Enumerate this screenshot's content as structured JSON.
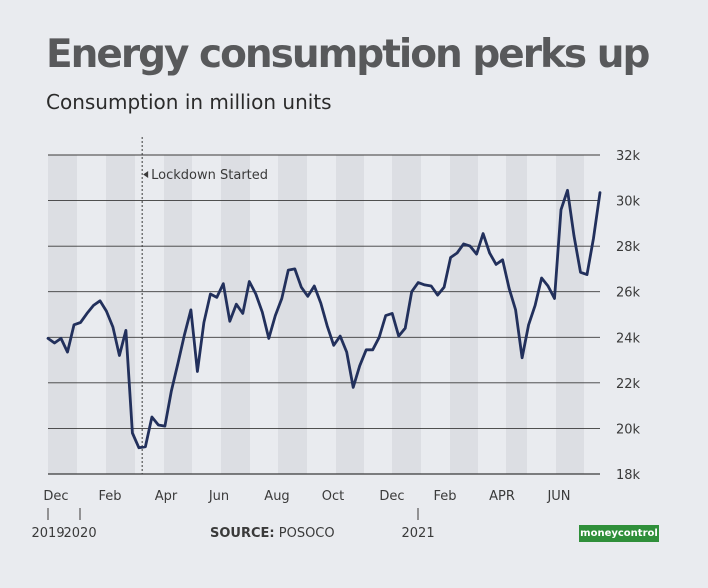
{
  "title": "Energy consumption perks up",
  "subtitle": "Consumption in million units",
  "source_label": "SOURCE:",
  "source_value": "POSOCO",
  "logo_text": "moneycontrol",
  "chart_data": {
    "type": "line",
    "title": "Energy consumption perks up",
    "subtitle": "Consumption in million units",
    "x_unit": "week",
    "x_tick_labels": [
      "Dec",
      "Feb",
      "Apr",
      "Jun",
      "Aug",
      "Oct",
      "Dec",
      "Feb",
      "APR",
      "JUN"
    ],
    "year_labels": [
      "2019",
      "2020",
      "2021"
    ],
    "y_ticks": [
      18000,
      20000,
      22000,
      24000,
      26000,
      28000,
      30000,
      32000
    ],
    "y_tick_labels": [
      "18k",
      "20k",
      "22k",
      "24k",
      "26k",
      "28k",
      "30k",
      "32k"
    ],
    "ylim": [
      18000,
      32000
    ],
    "grid": "horizontal",
    "line_color": "#22305c",
    "annotation": {
      "label": "Lockdown Started",
      "x": 14.5
    },
    "series": [
      {
        "values": [
          23950,
          23750,
          23950,
          23350,
          24550,
          24650,
          25050,
          25400,
          25600,
          25150,
          24450,
          23200,
          24300,
          19800,
          19150,
          19200,
          20500,
          20150,
          20100,
          21650,
          22850,
          24100,
          25200,
          22500,
          24650,
          25900,
          25750,
          26350,
          24700,
          25450,
          25050,
          26450,
          25900,
          25100,
          23950,
          24950,
          25700,
          26950,
          27000,
          26200,
          25800,
          26250,
          25500,
          24500,
          23650,
          24050,
          23350,
          21800,
          22750,
          23450,
          23450,
          24000,
          24950,
          25050,
          24050,
          24400,
          26000,
          26400,
          26300,
          26250,
          25850,
          26200,
          27500,
          27700,
          28100,
          28000,
          27650,
          28550,
          27700,
          27200,
          27400,
          26150,
          25200,
          23100,
          24550,
          25400,
          26600,
          26250,
          25700,
          29600,
          30450,
          28450,
          26850,
          26750,
          28350,
          30350
        ]
      }
    ]
  }
}
